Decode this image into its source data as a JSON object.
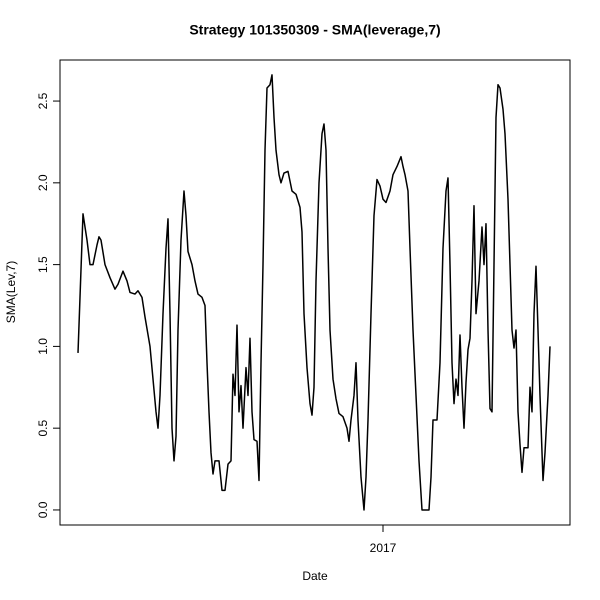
{
  "chart_data": {
    "type": "line",
    "title": "Strategy 101350309 - SMA(leverage,7)",
    "x_label": "Date",
    "y_label": "SMA(Lev,7)",
    "color": "#000000",
    "x": [
      2015.78,
      2015.788,
      2015.8,
      2015.816,
      2015.828,
      2015.84,
      2015.856,
      2015.864,
      2015.872,
      2015.888,
      2015.908,
      2015.928,
      2015.94,
      2015.96,
      2015.976,
      2015.988,
      2016.008,
      2016.02,
      2016.036,
      2016.048,
      2016.068,
      2016.08,
      2016.092,
      2016.1,
      2016.108,
      2016.12,
      2016.132,
      2016.14,
      2016.148,
      2016.156,
      2016.164,
      2016.172,
      2016.18,
      2016.192,
      2016.204,
      2016.212,
      2016.22,
      2016.236,
      2016.248,
      2016.26,
      2016.276,
      2016.288,
      2016.296,
      2016.304,
      2016.312,
      2016.32,
      2016.328,
      2016.344,
      2016.356,
      2016.368,
      2016.38,
      2016.392,
      2016.4,
      2016.408,
      2016.416,
      2016.424,
      2016.432,
      2016.44,
      2016.452,
      2016.46,
      2016.468,
      2016.476,
      2016.484,
      2016.496,
      2016.504,
      2016.512,
      2016.52,
      2016.528,
      2016.536,
      2016.548,
      2016.556,
      2016.564,
      2016.572,
      2016.584,
      2016.592,
      2016.604,
      2016.62,
      2016.636,
      2016.652,
      2016.668,
      2016.676,
      2016.684,
      2016.696,
      2016.708,
      2016.716,
      2016.724,
      2016.732,
      2016.744,
      2016.756,
      2016.764,
      2016.772,
      2016.78,
      2016.788,
      2016.8,
      2016.812,
      2016.824,
      2016.84,
      2016.856,
      2016.864,
      2016.872,
      2016.884,
      2016.892,
      2016.9,
      2016.912,
      2016.924,
      2016.932,
      2016.94,
      2016.952,
      2016.964,
      2016.976,
      2016.988,
      2017.0,
      2017.012,
      2017.028,
      2017.04,
      2017.056,
      2017.072,
      2017.08,
      2017.088,
      2017.1,
      2017.108,
      2017.12,
      2017.132,
      2017.144,
      2017.156,
      2017.168,
      2017.184,
      2017.192,
      2017.2,
      2017.216,
      2017.228,
      2017.24,
      2017.252,
      2017.26,
      2017.268,
      2017.276,
      2017.284,
      2017.292,
      2017.3,
      2017.308,
      2017.316,
      2017.324,
      2017.332,
      2017.34,
      2017.348,
      2017.356,
      2017.364,
      2017.372,
      2017.384,
      2017.396,
      2017.404,
      2017.412,
      2017.42,
      2017.428,
      2017.436,
      2017.444,
      2017.452,
      2017.46,
      2017.468,
      2017.48,
      2017.488,
      2017.5,
      2017.508,
      2017.516,
      2017.524,
      2017.532,
      2017.54,
      2017.548,
      2017.556,
      2017.564,
      2017.58,
      2017.588,
      2017.596,
      2017.604,
      2017.612,
      2017.62,
      2017.628,
      2017.64,
      2017.648,
      2017.66,
      2017.668
    ],
    "values": [
      0.96,
      1.3,
      1.81,
      1.65,
      1.5,
      1.5,
      1.62,
      1.67,
      1.65,
      1.5,
      1.42,
      1.35,
      1.38,
      1.46,
      1.4,
      1.33,
      1.32,
      1.34,
      1.3,
      1.18,
      1.0,
      0.8,
      0.6,
      0.5,
      0.7,
      1.2,
      1.6,
      1.78,
      1.2,
      0.5,
      0.3,
      0.45,
      1.1,
      1.65,
      1.95,
      1.8,
      1.58,
      1.5,
      1.4,
      1.32,
      1.3,
      1.25,
      0.9,
      0.6,
      0.35,
      0.22,
      0.3,
      0.3,
      0.12,
      0.12,
      0.28,
      0.3,
      0.83,
      0.7,
      1.13,
      0.6,
      0.76,
      0.5,
      0.87,
      0.7,
      1.05,
      0.6,
      0.43,
      0.42,
      0.18,
      0.9,
      1.5,
      2.2,
      2.58,
      2.6,
      2.66,
      2.4,
      2.2,
      2.05,
      2.0,
      2.06,
      2.07,
      1.95,
      1.93,
      1.85,
      1.7,
      1.2,
      0.87,
      0.65,
      0.58,
      0.75,
      1.4,
      2.0,
      2.3,
      2.36,
      2.2,
      1.6,
      1.1,
      0.8,
      0.68,
      0.59,
      0.57,
      0.5,
      0.42,
      0.55,
      0.7,
      0.9,
      0.55,
      0.2,
      0.0,
      0.2,
      0.55,
      1.2,
      1.8,
      2.02,
      1.98,
      1.9,
      1.88,
      1.95,
      2.05,
      2.1,
      2.16,
      2.1,
      2.05,
      1.95,
      1.6,
      1.1,
      0.7,
      0.3,
      0.0,
      0.0,
      0.0,
      0.2,
      0.55,
      0.55,
      0.9,
      1.6,
      1.95,
      2.03,
      1.5,
      0.9,
      0.65,
      0.8,
      0.7,
      1.07,
      0.75,
      0.5,
      0.78,
      0.98,
      1.05,
      1.4,
      1.86,
      1.2,
      1.4,
      1.73,
      1.5,
      1.75,
      1.1,
      0.62,
      0.6,
      1.5,
      2.4,
      2.6,
      2.58,
      2.45,
      2.3,
      1.9,
      1.5,
      1.1,
      0.99,
      1.1,
      0.6,
      0.4,
      0.23,
      0.38,
      0.38,
      0.75,
      0.6,
      1.2,
      1.49,
      1.1,
      0.7,
      0.18,
      0.35,
      0.7,
      1.0
    ],
    "xlim": [
      2015.708,
      2017.748
    ],
    "xticks": [
      2017
    ],
    "ylim": [
      -0.092,
      2.751
    ],
    "yticks": [
      {
        "value": 0,
        "label": "0.0"
      },
      0.5,
      {
        "value": 1,
        "label": "1.0"
      },
      1.5,
      {
        "value": 2,
        "label": "2.0"
      },
      2.5
    ]
  }
}
